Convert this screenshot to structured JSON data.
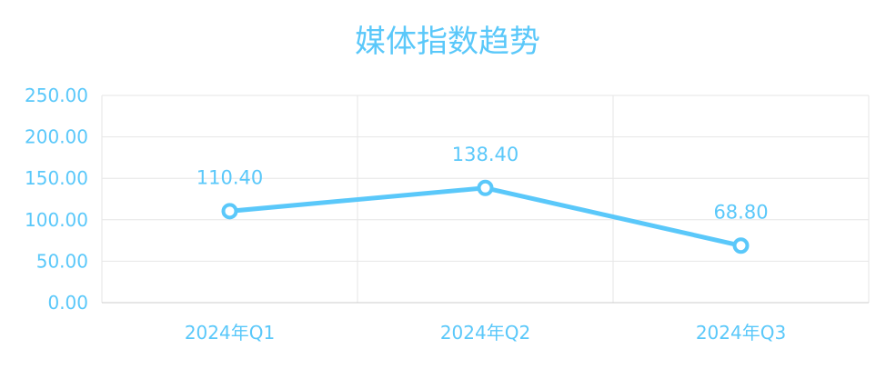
{
  "chart_data": {
    "type": "line",
    "title": "媒体指数趋势",
    "categories": [
      "2024年Q1",
      "2024年Q2",
      "2024年Q3"
    ],
    "values": [
      110.4,
      138.4,
      68.8
    ],
    "data_labels": [
      "110.40",
      "138.40",
      "68.80"
    ],
    "yticks": [
      "0.00",
      "50.00",
      "100.00",
      "150.00",
      "200.00",
      "250.00"
    ],
    "ylim": [
      0,
      250
    ],
    "grid": true,
    "colors": {
      "series": "#5ac8fa",
      "text": "#5ac8fa",
      "grid": "#e6e6e6",
      "axis": "#cccccc"
    }
  }
}
